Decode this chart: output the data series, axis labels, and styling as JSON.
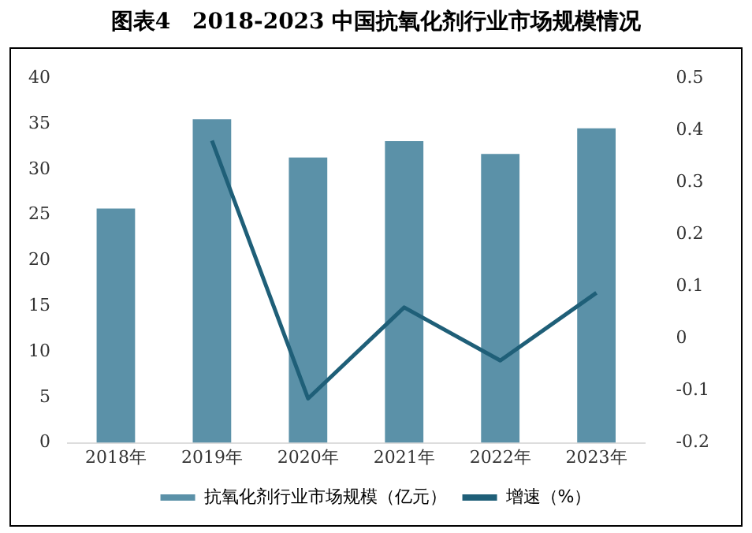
{
  "chart_data": {
    "type": "bar",
    "title": "图表4　2018-2023 中国抗氧化剂行业市场规模情况",
    "categories": [
      "2018年",
      "2019年",
      "2020年",
      "2021年",
      "2022年",
      "2023年"
    ],
    "series": [
      {
        "name": "抗氧化剂行业市场规模（亿元）",
        "color": "#5b91a8",
        "values": [
          25.7,
          35.5,
          31.3,
          33.1,
          31.7,
          34.5
        ]
      },
      {
        "name": "增速（%）",
        "type": "line",
        "axis": "y2",
        "color": "#1f5f78",
        "values": [
          null,
          0.38,
          -0.115,
          0.06,
          -0.042,
          0.088
        ]
      }
    ],
    "ylim": [
      0,
      40
    ],
    "yticks": [
      0,
      5,
      10,
      15,
      20,
      25,
      30,
      35,
      40
    ],
    "y2lim": [
      -0.2,
      0.5
    ],
    "y2ticks": [
      -0.2,
      -0.1,
      0,
      0.1,
      0.2,
      0.3,
      0.4,
      0.5
    ],
    "grid": false,
    "legend": "bottom",
    "marker": "none"
  }
}
